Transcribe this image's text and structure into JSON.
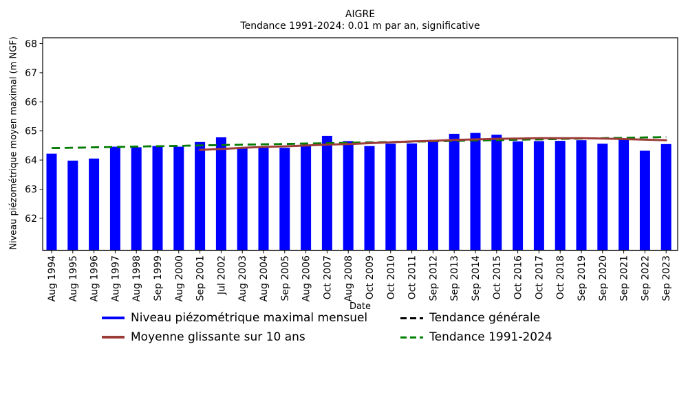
{
  "chart_data": {
    "type": "bar",
    "title": "AIGRE",
    "subtitle": "Tendance 1991-2024: 0.01 m par an, significative",
    "xlabel": "Date",
    "ylabel": "Niveau piézométrique moyen maximal (m NGF)",
    "ylim": [
      60.9,
      68.2
    ],
    "yticks": [
      62,
      63,
      64,
      65,
      66,
      67,
      68
    ],
    "grid": false,
    "legend_position": "lower center, 2 columns, no frame",
    "categories": [
      "Aug 1994",
      "Aug 1995",
      "Aug 1996",
      "Aug 1997",
      "Aug 1998",
      "Sep 1999",
      "Aug 2000",
      "Sep 2001",
      "Jul 2002",
      "Aug 2003",
      "Aug 2004",
      "Sep 2005",
      "Aug 2006",
      "Oct 2007",
      "Aug 2008",
      "Oct 2009",
      "Oct 2010",
      "Oct 2011",
      "Sep 2012",
      "Sep 2013",
      "Sep 2014",
      "Oct 2015",
      "Oct 2016",
      "Oct 2017",
      "Oct 2018",
      "Sep 2019",
      "Sep 2020",
      "Sep 2021",
      "Sep 2022",
      "Sep 2023"
    ],
    "series": [
      {
        "name": "Niveau piézométrique maximal mensuel",
        "type": "bar",
        "color": "#0000ff",
        "values": [
          64.22,
          63.98,
          64.05,
          64.46,
          64.44,
          64.48,
          64.46,
          64.62,
          64.78,
          64.41,
          64.44,
          64.42,
          64.5,
          64.83,
          64.65,
          64.48,
          64.56,
          64.57,
          64.69,
          64.9,
          64.93,
          64.87,
          64.64,
          64.65,
          64.66,
          64.68,
          64.56,
          64.72,
          64.32,
          64.55
        ]
      },
      {
        "name": "Moyenne glissante sur 10 ans",
        "type": "line",
        "color": "#9c3c38",
        "indices": [
          7,
          8,
          9,
          10,
          11,
          12,
          13,
          14,
          15,
          16,
          17,
          18,
          19,
          20,
          21,
          22,
          23,
          24,
          25,
          26,
          27,
          28,
          29
        ],
        "values": [
          64.35,
          64.38,
          64.42,
          64.45,
          64.47,
          64.5,
          64.53,
          64.55,
          64.58,
          64.61,
          64.64,
          64.66,
          64.69,
          64.71,
          64.73,
          64.74,
          64.75,
          64.75,
          64.75,
          64.74,
          64.72,
          64.7,
          64.68
        ]
      },
      {
        "name": "Tendance générale",
        "type": "dashed-line",
        "color": "#000000",
        "indices": [
          0,
          29
        ],
        "values": [
          64.41,
          64.79
        ]
      },
      {
        "name": "Tendance 1991-2024",
        "type": "dashed-line",
        "color": "#008000",
        "indices": [
          0,
          29
        ],
        "values": [
          64.41,
          64.79
        ]
      }
    ]
  }
}
